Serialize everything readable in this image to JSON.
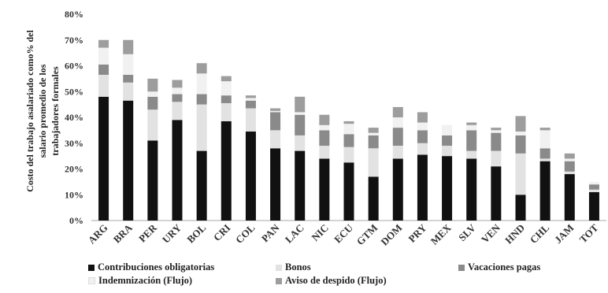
{
  "chart_data": {
    "type": "bar",
    "stacked": true,
    "ylabel": "Costo del trabajo asalariado como% del salario promedio de los trabajadores formales",
    "ylim": [
      0,
      80
    ],
    "yticks": [
      "0%",
      "10%",
      "20%",
      "30%",
      "40%",
      "50%",
      "60%",
      "70%",
      "80%"
    ],
    "grid": false,
    "legend_position": "bottom",
    "categories": [
      "ARG",
      "BRA",
      "PER",
      "URY",
      "BOL",
      "CRI",
      "COL",
      "PAN",
      "LAC",
      "NIC",
      "ECU",
      "GTM",
      "DOM",
      "PRY",
      "MEX",
      "SLV",
      "VEN",
      "HND",
      "CHL",
      "JAM",
      "TOT"
    ],
    "series": [
      {
        "name": "Contribuciones obligatorias",
        "color": "#111111",
        "values": [
          48,
          46.5,
          31,
          39,
          27,
          38.5,
          34.5,
          28,
          27,
          24,
          22.5,
          17,
          24,
          25.5,
          25,
          24,
          21,
          10,
          23,
          18,
          11
        ]
      },
      {
        "name": "Bonos",
        "color": "#e2e2e2",
        "values": [
          8.5,
          7,
          12,
          7,
          18,
          7,
          9,
          7,
          6,
          5,
          6,
          11,
          5,
          4.5,
          4,
          3,
          6,
          16,
          1,
          1,
          1
        ]
      },
      {
        "name": "Vacaciones pagas",
        "color": "#8a8a8a",
        "values": [
          4,
          3,
          5,
          3,
          4,
          3,
          3,
          7,
          8,
          6,
          5,
          5,
          7,
          5,
          4,
          8,
          7,
          7,
          4,
          4,
          2
        ]
      },
      {
        "name": "Indemnización (Flujo)",
        "color": "#f1f1f1",
        "values": [
          6.5,
          8,
          2,
          2.5,
          8,
          5.5,
          1,
          0.5,
          1,
          2,
          4,
          1,
          4,
          3,
          4,
          2,
          1,
          1.5,
          7,
          1,
          1
        ]
      },
      {
        "name": "Aviso de despido (Flujo)",
        "color": "#9d9d9d",
        "values": [
          3,
          5.5,
          5,
          3,
          4,
          2,
          1,
          1,
          6,
          4,
          1,
          2,
          4,
          4,
          0,
          1,
          1,
          6,
          1,
          2,
          0
        ]
      }
    ]
  }
}
